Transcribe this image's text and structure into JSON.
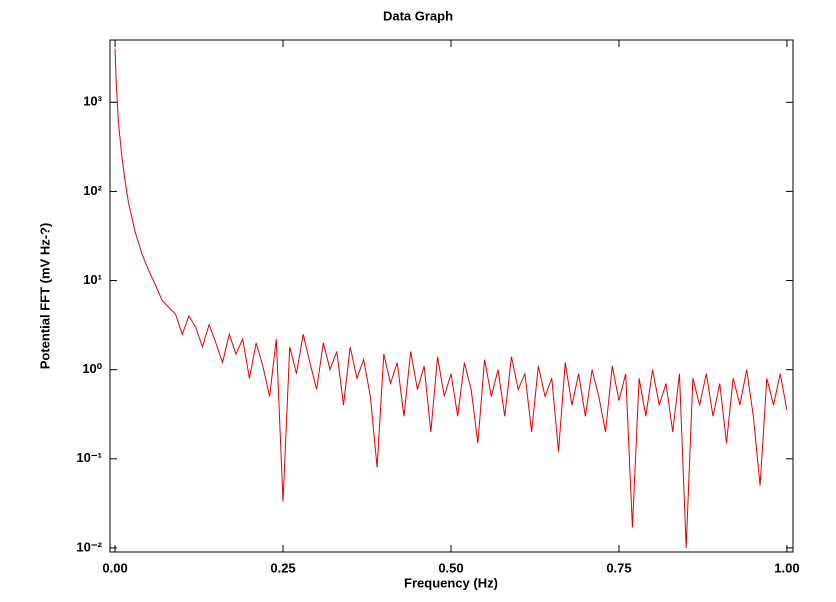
{
  "chart_data": {
    "type": "line",
    "title": "Data Graph",
    "xlabel": "Frequency (Hz)",
    "ylabel": "Potential FFT (mV Hz-?)",
    "log_y": true,
    "color": "#e00000",
    "xlim": [
      -0.0075,
      1.009
    ],
    "ylim": [
      0.009,
      5000
    ],
    "xticks": [
      {
        "value": 0,
        "label": "0.00"
      },
      {
        "value": 0.25,
        "label": "0.25"
      },
      {
        "value": 0.5,
        "label": "0.50"
      },
      {
        "value": 0.75,
        "label": "0.75"
      },
      {
        "value": 1,
        "label": "1.00"
      }
    ],
    "yticks": [
      {
        "value": 0.01,
        "label": "10⁻²"
      },
      {
        "value": 0.1,
        "label": "10⁻¹"
      },
      {
        "value": 1,
        "label": "10⁰"
      },
      {
        "value": 10,
        "label": "10¹"
      },
      {
        "value": 100,
        "label": "10²"
      },
      {
        "value": 1000,
        "label": "10³"
      }
    ],
    "x": [
      0,
      0.002,
      0.005,
      0.01,
      0.015,
      0.02,
      0.03,
      0.04,
      0.05,
      0.06,
      0.07,
      0.08,
      0.09,
      0.1,
      0.11,
      0.12,
      0.13,
      0.14,
      0.15,
      0.16,
      0.17,
      0.18,
      0.19,
      0.2,
      0.21,
      0.22,
      0.23,
      0.24,
      0.25,
      0.26,
      0.27,
      0.28,
      0.29,
      0.3,
      0.31,
      0.32,
      0.33,
      0.34,
      0.35,
      0.36,
      0.37,
      0.38,
      0.39,
      0.4,
      0.41,
      0.42,
      0.43,
      0.44,
      0.45,
      0.46,
      0.47,
      0.48,
      0.49,
      0.5,
      0.51,
      0.52,
      0.53,
      0.54,
      0.55,
      0.56,
      0.57,
      0.58,
      0.59,
      0.6,
      0.61,
      0.62,
      0.63,
      0.64,
      0.65,
      0.66,
      0.67,
      0.68,
      0.69,
      0.7,
      0.71,
      0.72,
      0.73,
      0.74,
      0.75,
      0.76,
      0.77,
      0.78,
      0.79,
      0.8,
      0.81,
      0.82,
      0.83,
      0.84,
      0.85,
      0.86,
      0.87,
      0.88,
      0.89,
      0.9,
      0.91,
      0.92,
      0.93,
      0.94,
      0.95,
      0.96,
      0.97,
      0.98,
      0.99,
      1.0
    ],
    "values": [
      4000,
      1500,
      600,
      250,
      130,
      75,
      35,
      20,
      13,
      9,
      6,
      5,
      4.2,
      2.5,
      4,
      3,
      1.8,
      3.2,
      2,
      1.2,
      2.5,
      1.5,
      2.2,
      0.8,
      2,
      1.1,
      0.5,
      2.2,
      0.033,
      1.8,
      0.9,
      2.5,
      1.2,
      0.6,
      2,
      1,
      1.6,
      0.4,
      1.8,
      0.8,
      1.3,
      0.5,
      0.08,
      1.5,
      0.7,
      1.2,
      0.3,
      1.6,
      0.6,
      1.1,
      0.2,
      1.4,
      0.5,
      0.9,
      0.3,
      1.2,
      0.6,
      0.15,
      1.3,
      0.5,
      1.0,
      0.3,
      1.4,
      0.6,
      0.9,
      0.2,
      1.1,
      0.5,
      0.8,
      0.12,
      1.2,
      0.4,
      0.9,
      0.3,
      1.0,
      0.5,
      0.2,
      1.1,
      0.45,
      0.9,
      0.017,
      0.8,
      0.3,
      1.0,
      0.4,
      0.7,
      0.2,
      0.9,
      0.01,
      0.8,
      0.4,
      0.9,
      0.3,
      0.7,
      0.15,
      0.8,
      0.4,
      1.0,
      0.3,
      0.05,
      0.8,
      0.4,
      0.9,
      0.35
    ]
  }
}
